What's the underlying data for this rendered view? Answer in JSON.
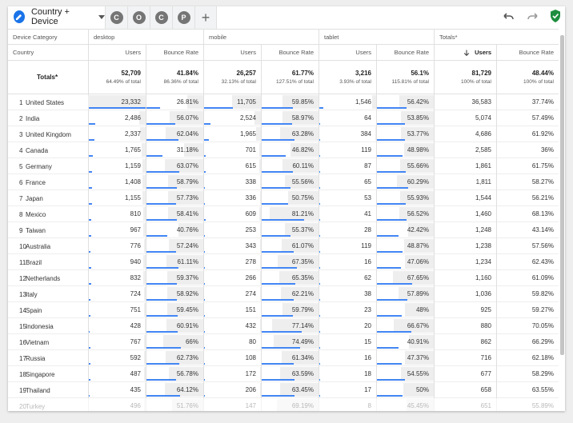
{
  "tabs": {
    "active_label": "Country + Device",
    "segments": [
      "C",
      "O",
      "C",
      "P"
    ],
    "add": "+"
  },
  "header": {
    "device_category": "Device Category",
    "country": "Country",
    "groups": [
      "desktop",
      "mobile",
      "tablet",
      "Totals*"
    ],
    "users": "Users",
    "bounce_rate": "Bounce Rate",
    "totals_label": "Totals*"
  },
  "totals": [
    {
      "users": "52,709",
      "users_pct": "64.49% of total",
      "bounce": "41.84%",
      "bounce_pct": "86.36% of total"
    },
    {
      "users": "26,257",
      "users_pct": "32.13% of total",
      "bounce": "61.77%",
      "bounce_pct": "127.51% of total"
    },
    {
      "users": "3,216",
      "users_pct": "3.93% of total",
      "bounce": "56.1%",
      "bounce_pct": "115.81% of total"
    },
    {
      "users": "81,729",
      "users_pct": "100% of total",
      "bounce": "48.44%",
      "bounce_pct": "100% of total"
    }
  ],
  "rows": [
    {
      "i": "1",
      "country": "United States",
      "d": [
        "23,332",
        "26.81%"
      ],
      "m": [
        "11,705",
        "59.85%"
      ],
      "t": [
        "1,546",
        "56.42%"
      ],
      "tot": [
        "36,583",
        "37.74%"
      ],
      "du": 1.0,
      "db": 0.2681,
      "mu": 0.502,
      "mb": 0.5985,
      "tu": 0.066,
      "tb": 0.5642
    },
    {
      "i": "2",
      "country": "India",
      "d": [
        "2,486",
        "56.07%"
      ],
      "m": [
        "2,524",
        "58.97%"
      ],
      "t": [
        "64",
        "53.85%"
      ],
      "tot": [
        "5,074",
        "57.49%"
      ],
      "du": 0.107,
      "db": 0.5607,
      "mu": 0.108,
      "mb": 0.5897,
      "tu": 0.003,
      "tb": 0.5385
    },
    {
      "i": "3",
      "country": "United Kingdom",
      "d": [
        "2,337",
        "62.04%"
      ],
      "m": [
        "1,965",
        "63.28%"
      ],
      "t": [
        "384",
        "53.77%"
      ],
      "tot": [
        "4,686",
        "61.92%"
      ],
      "du": 0.1,
      "db": 0.6204,
      "mu": 0.084,
      "mb": 0.6328,
      "tu": 0.016,
      "tb": 0.5377
    },
    {
      "i": "4",
      "country": "Canada",
      "d": [
        "1,765",
        "31.18%"
      ],
      "m": [
        "701",
        "46.82%"
      ],
      "t": [
        "119",
        "48.98%"
      ],
      "tot": [
        "2,585",
        "36%"
      ],
      "du": 0.076,
      "db": 0.3118,
      "mu": 0.03,
      "mb": 0.4682,
      "tu": 0.005,
      "tb": 0.4898
    },
    {
      "i": "5",
      "country": "Germany",
      "d": [
        "1,159",
        "63.07%"
      ],
      "m": [
        "615",
        "60.11%"
      ],
      "t": [
        "87",
        "55.66%"
      ],
      "tot": [
        "1,861",
        "61.75%"
      ],
      "du": 0.05,
      "db": 0.6307,
      "mu": 0.026,
      "mb": 0.6011,
      "tu": 0.004,
      "tb": 0.5566
    },
    {
      "i": "6",
      "country": "France",
      "d": [
        "1,408",
        "58.79%"
      ],
      "m": [
        "338",
        "55.56%"
      ],
      "t": [
        "65",
        "60.29%"
      ],
      "tot": [
        "1,811",
        "58.27%"
      ],
      "du": 0.06,
      "db": 0.5879,
      "mu": 0.014,
      "mb": 0.5556,
      "tu": 0.003,
      "tb": 0.6029
    },
    {
      "i": "7",
      "country": "Japan",
      "d": [
        "1,155",
        "57.73%"
      ],
      "m": [
        "336",
        "50.75%"
      ],
      "t": [
        "53",
        "55.93%"
      ],
      "tot": [
        "1,544",
        "56.21%"
      ],
      "du": 0.05,
      "db": 0.5773,
      "mu": 0.014,
      "mb": 0.5075,
      "tu": 0.002,
      "tb": 0.5593
    },
    {
      "i": "8",
      "country": "Mexico",
      "d": [
        "810",
        "58.41%"
      ],
      "m": [
        "609",
        "81.21%"
      ],
      "t": [
        "41",
        "56.52%"
      ],
      "tot": [
        "1,460",
        "68.13%"
      ],
      "du": 0.035,
      "db": 0.5841,
      "mu": 0.026,
      "mb": 0.8121,
      "tu": 0.002,
      "tb": 0.5652
    },
    {
      "i": "9",
      "country": "Taiwan",
      "d": [
        "967",
        "40.76%"
      ],
      "m": [
        "253",
        "55.37%"
      ],
      "t": [
        "28",
        "42.42%"
      ],
      "tot": [
        "1,248",
        "43.14%"
      ],
      "du": 0.041,
      "db": 0.4076,
      "mu": 0.011,
      "mb": 0.5537,
      "tu": 0.001,
      "tb": 0.4242
    },
    {
      "i": "10",
      "country": "Australia",
      "d": [
        "776",
        "57.24%"
      ],
      "m": [
        "343",
        "61.07%"
      ],
      "t": [
        "119",
        "48.87%"
      ],
      "tot": [
        "1,238",
        "57.56%"
      ],
      "du": 0.033,
      "db": 0.5724,
      "mu": 0.015,
      "mb": 0.6107,
      "tu": 0.005,
      "tb": 0.4887
    },
    {
      "i": "11",
      "country": "Brazil",
      "d": [
        "940",
        "61.11%"
      ],
      "m": [
        "278",
        "67.35%"
      ],
      "t": [
        "16",
        "47.06%"
      ],
      "tot": [
        "1,234",
        "62.43%"
      ],
      "du": 0.04,
      "db": 0.6111,
      "mu": 0.012,
      "mb": 0.6735,
      "tu": 0.001,
      "tb": 0.4706
    },
    {
      "i": "12",
      "country": "Netherlands",
      "d": [
        "832",
        "59.37%"
      ],
      "m": [
        "266",
        "65.35%"
      ],
      "t": [
        "62",
        "67.65%"
      ],
      "tot": [
        "1,160",
        "61.09%"
      ],
      "du": 0.036,
      "db": 0.5937,
      "mu": 0.011,
      "mb": 0.6535,
      "tu": 0.003,
      "tb": 0.6765
    },
    {
      "i": "13",
      "country": "Italy",
      "d": [
        "724",
        "58.92%"
      ],
      "m": [
        "274",
        "62.21%"
      ],
      "t": [
        "38",
        "57.89%"
      ],
      "tot": [
        "1,036",
        "59.82%"
      ],
      "du": 0.031,
      "db": 0.5892,
      "mu": 0.012,
      "mb": 0.6221,
      "tu": 0.002,
      "tb": 0.5789
    },
    {
      "i": "14",
      "country": "Spain",
      "d": [
        "751",
        "59.45%"
      ],
      "m": [
        "151",
        "59.79%"
      ],
      "t": [
        "23",
        "48%"
      ],
      "tot": [
        "925",
        "59.27%"
      ],
      "du": 0.032,
      "db": 0.5945,
      "mu": 0.006,
      "mb": 0.5979,
      "tu": 0.001,
      "tb": 0.48
    },
    {
      "i": "15",
      "country": "Indonesia",
      "d": [
        "428",
        "60.91%"
      ],
      "m": [
        "432",
        "77.14%"
      ],
      "t": [
        "20",
        "66.67%"
      ],
      "tot": [
        "880",
        "70.05%"
      ],
      "du": 0.018,
      "db": 0.6091,
      "mu": 0.019,
      "mb": 0.7714,
      "tu": 0.001,
      "tb": 0.6667
    },
    {
      "i": "16",
      "country": "Vietnam",
      "d": [
        "767",
        "66%"
      ],
      "m": [
        "80",
        "74.49%"
      ],
      "t": [
        "15",
        "40.91%"
      ],
      "tot": [
        "862",
        "66.29%"
      ],
      "du": 0.033,
      "db": 0.66,
      "mu": 0.003,
      "mb": 0.7449,
      "tu": 0.001,
      "tb": 0.4091
    },
    {
      "i": "17",
      "country": "Russia",
      "d": [
        "592",
        "62.73%"
      ],
      "m": [
        "108",
        "61.34%"
      ],
      "t": [
        "16",
        "47.37%"
      ],
      "tot": [
        "716",
        "62.18%"
      ],
      "du": 0.025,
      "db": 0.6273,
      "mu": 0.005,
      "mb": 0.6134,
      "tu": 0.001,
      "tb": 0.4737
    },
    {
      "i": "18",
      "country": "Singapore",
      "d": [
        "487",
        "56.78%"
      ],
      "m": [
        "172",
        "63.59%"
      ],
      "t": [
        "18",
        "54.55%"
      ],
      "tot": [
        "677",
        "58.29%"
      ],
      "du": 0.021,
      "db": 0.5678,
      "mu": 0.007,
      "mb": 0.6359,
      "tu": 0.001,
      "tb": 0.5455
    },
    {
      "i": "19",
      "country": "Thailand",
      "d": [
        "435",
        "64.12%"
      ],
      "m": [
        "206",
        "63.45%"
      ],
      "t": [
        "17",
        "50%"
      ],
      "tot": [
        "658",
        "63.55%"
      ],
      "du": 0.019,
      "db": 0.6412,
      "mu": 0.009,
      "mb": 0.6345,
      "tu": 0.001,
      "tb": 0.5
    },
    {
      "i": "20",
      "country": "Turkey",
      "d": [
        "496",
        "51.76%"
      ],
      "m": [
        "147",
        "69.19%"
      ],
      "t": [
        "8",
        "45.45%"
      ],
      "tot": [
        "651",
        "55.89%"
      ],
      "du": 0.021,
      "db": 0.5176,
      "mu": 0.006,
      "mb": 0.6919,
      "tu": 0.0,
      "tb": 0.4545
    }
  ]
}
